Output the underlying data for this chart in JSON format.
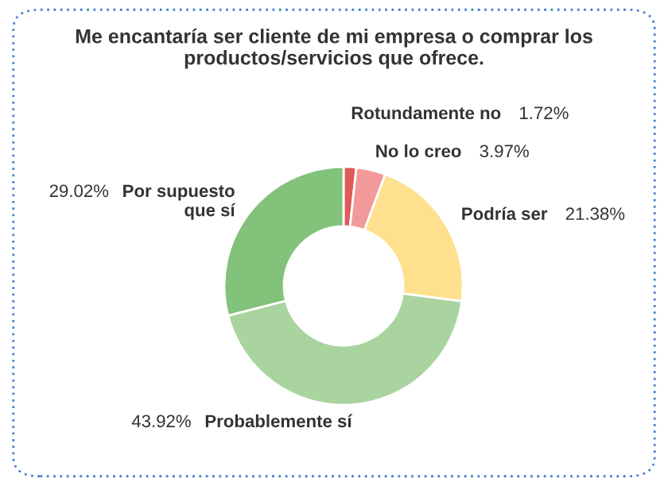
{
  "chart_data": {
    "type": "donut",
    "title": "Me encantaría ser cliente de mi empresa o comprar los productos/servicios que ofrece.",
    "categories": [
      "Rotundamente no",
      "No lo creo",
      "Podría ser",
      "Probablemente sí",
      "Por supuesto que sí"
    ],
    "values": [
      1.72,
      3.97,
      21.38,
      43.92,
      29.02
    ],
    "value_labels": [
      "1.72%",
      "3.97%",
      "21.38%",
      "43.92%",
      "29.02%"
    ],
    "colors": [
      "#e05a5a",
      "#f29a9a",
      "#ffe08f",
      "#a9d4a0",
      "#82c27a"
    ]
  }
}
